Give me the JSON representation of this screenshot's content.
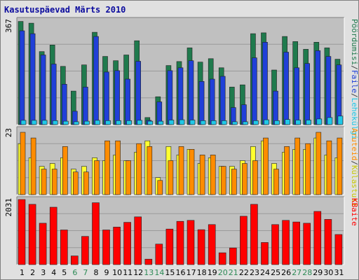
{
  "chart_data": [
    {
      "type": "bar",
      "title": "Kasutuspäevad Märts 2010",
      "panel": "top",
      "ymax_label": "367",
      "ylim": [
        0,
        367
      ],
      "categories": [
        "1",
        "2",
        "3",
        "4",
        "5",
        "6",
        "7",
        "8",
        "9",
        "10",
        "11",
        "12",
        "13",
        "14",
        "15",
        "16",
        "17",
        "18",
        "19",
        "20",
        "21",
        "22",
        "23",
        "24",
        "25",
        "26",
        "27",
        "28",
        "29",
        "30",
        "31"
      ],
      "weekend_days": [
        "6",
        "7",
        "13",
        "14",
        "20",
        "21",
        "27",
        "28"
      ],
      "series": [
        {
          "name": "Pöördumisi",
          "color": "#1f7a4d",
          "values": [
            363,
            357,
            257,
            280,
            205,
            118,
            210,
            325,
            240,
            225,
            245,
            295,
            25,
            98,
            208,
            222,
            270,
            220,
            232,
            200,
            132,
            140,
            320,
            323,
            192,
            310,
            292,
            265,
            290,
            270,
            230
          ]
        },
        {
          "name": "Faile",
          "color": "#2040d8",
          "values": [
            330,
            320,
            245,
            213,
            142,
            47,
            132,
            310,
            185,
            190,
            160,
            223,
            15,
            80,
            190,
            200,
            225,
            152,
            160,
            170,
            60,
            70,
            235,
            290,
            118,
            255,
            200,
            215,
            260,
            240,
            210
          ]
        },
        {
          "name": "Lehekülgi",
          "color": "#20c8e8",
          "values": [
            15,
            15,
            15,
            14,
            12,
            10,
            12,
            15,
            14,
            14,
            14,
            15,
            12,
            12,
            16,
            17,
            16,
            14,
            14,
            14,
            10,
            10,
            14,
            17,
            14,
            18,
            16,
            16,
            20,
            25,
            30
          ]
        }
      ],
      "legend_text": [
        "Pöördumisi",
        "/",
        "Faile",
        "/",
        "Lehekülgi"
      ]
    },
    {
      "type": "bar",
      "panel": "middle",
      "ymax_label": "23",
      "ylim": [
        0,
        23
      ],
      "series": [
        {
          "name": "Külastusi",
          "color": "#ffff30",
          "values": [
            18,
            13,
            10,
            11,
            13,
            9,
            10,
            13,
            12,
            14,
            12,
            15,
            19,
            6,
            17,
            14,
            16,
            11,
            13,
            10,
            10,
            12,
            17,
            19,
            11,
            15,
            16,
            16,
            20,
            14,
            13
          ]
        },
        {
          "name": "Aruteid",
          "color": "#ff8c00",
          "values": [
            22,
            20,
            9,
            9,
            17,
            8,
            8,
            12,
            19,
            19,
            12,
            18,
            17,
            5,
            12,
            17,
            16,
            14,
            14,
            10,
            9,
            11,
            12,
            20,
            9,
            17,
            20,
            18,
            22,
            19,
            20
          ]
        }
      ],
      "legend_text": [
        "Aruteid",
        "/",
        "Külastusi"
      ]
    },
    {
      "type": "bar",
      "panel": "bottom",
      "ymax_label": "2031",
      "ylim": [
        0,
        2031
      ],
      "series": [
        {
          "name": "KBaite",
          "color": "#ff0000",
          "values": [
            2031,
            1880,
            1290,
            1790,
            1080,
            270,
            880,
            1930,
            1080,
            1170,
            1320,
            1490,
            170,
            640,
            1110,
            1350,
            1380,
            1090,
            1250,
            370,
            520,
            1510,
            1880,
            690,
            1250,
            1380,
            1330,
            1290,
            1660,
            1410,
            940
          ]
        }
      ],
      "legend_text": [
        "KBaite"
      ]
    }
  ]
}
